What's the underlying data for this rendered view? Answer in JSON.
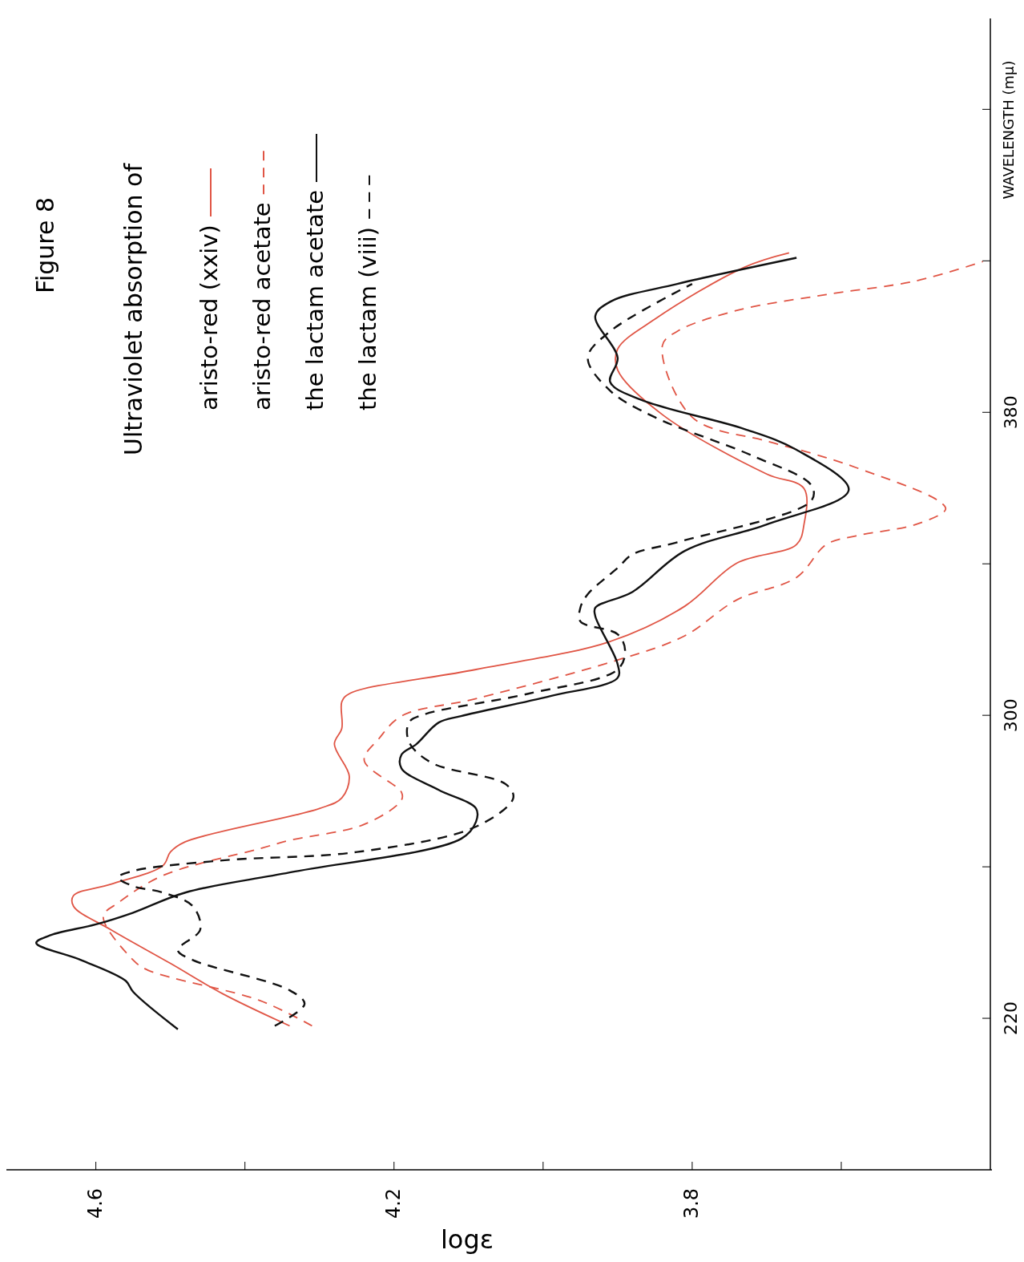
{
  "chart_data": {
    "type": "line",
    "title": "Figure 8",
    "subtitle": "Ultraviolet absorption of",
    "xlabel": "logε",
    "ylabel": "WAVELENGTH (mμ)",
    "xlim": [
      4.72,
      3.4
    ],
    "xticks": [
      4.6,
      {
        "value": 4.4,
        "label": null
      },
      4.2,
      {
        "value": 4.0,
        "label": null
      },
      3.8,
      {
        "value": 3.6,
        "label": null
      }
    ],
    "ylim": [
      180,
      484
    ],
    "yticks": [
      220,
      {
        "value": 260,
        "label": null
      },
      300,
      {
        "value": 340,
        "label": null
      },
      380,
      {
        "value": 420,
        "label": null
      },
      {
        "value": 460,
        "label": null
      }
    ],
    "legend": "top left",
    "marker": "none",
    "series": [
      {
        "name": "aristo-red (xxiv)",
        "color": "#e05545",
        "line_style": "solid",
        "values": [
          218.0,
          226.5,
          234.5,
          243.4,
          249.6,
          252.4,
          255.4,
          260.3,
          263.9,
          266.6,
          275.4,
          278.2,
          283.9,
          292.4,
          296.6,
          303.6,
          305.7,
          312.1,
          319.5,
          328.8,
          340.2,
          345.1,
          350.4,
          359.9,
          363.7,
          379.4,
          391.2,
          396.7,
          404.6,
          418.3,
          422.1
        ],
        "x": [
          4.34,
          4.43,
          4.5,
          4.58,
          4.63,
          4.63,
          4.58,
          4.51,
          4.5,
          4.48,
          4.3,
          4.27,
          4.26,
          4.28,
          4.27,
          4.27,
          4.26,
          4.09,
          3.91,
          3.81,
          3.74,
          3.66,
          3.65,
          3.65,
          3.7,
          3.84,
          3.9,
          3.9,
          3.85,
          3.73,
          3.67
        ]
      },
      {
        "name": "aristo-red acetate",
        "color": "#e05545",
        "line_style": "dashed",
        "values": [
          218.0,
          224.7,
          232.7,
          235.4,
          246.9,
          250.5,
          257.7,
          264.8,
          267.0,
          271.2,
          277.6,
          279.7,
          288.1,
          293.9,
          299.8,
          304.4,
          314.6,
          321.0,
          330.5,
          336.4,
          345.1,
          347.4,
          350.4,
          354.4,
          356.7,
          365.4,
          369.2,
          372.4,
          378.7,
          397.6,
          401.4,
          406.9,
          411.1,
          414.7,
          419.8
        ],
        "x": [
          4.31,
          4.38,
          4.53,
          4.55,
          4.59,
          4.57,
          4.51,
          4.38,
          4.34,
          4.24,
          4.19,
          4.19,
          4.24,
          4.22,
          4.19,
          4.09,
          3.9,
          3.81,
          3.74,
          3.66,
          3.62,
          3.58,
          3.5,
          3.46,
          3.47,
          3.58,
          3.64,
          3.7,
          3.8,
          3.84,
          3.82,
          3.74,
          3.62,
          3.5,
          3.41
        ]
      },
      {
        "name": "the lactam acetate",
        "color": "#111111",
        "line_style": "solid",
        "values": [
          217.1,
          227.0,
          229.9,
          235.4,
          239.9,
          242.0,
          244.8,
          247.9,
          253.2,
          258.5,
          267.4,
          271.9,
          275.4,
          280.3,
          286.0,
          289.6,
          292.4,
          298.1,
          299.8,
          305.1,
          309.9,
          313.5,
          326.2,
          328.4,
          332.6,
          343.4,
          350.4,
          359.5,
          370.1,
          375.6,
          383.4,
          388.0,
          394.4,
          405.4,
          409.2,
          413.9,
          420.8
        ],
        "x": [
          4.49,
          4.55,
          4.56,
          4.62,
          4.68,
          4.66,
          4.6,
          4.55,
          4.48,
          4.34,
          4.11,
          4.09,
          4.09,
          4.14,
          4.19,
          4.19,
          4.17,
          4.14,
          4.11,
          3.99,
          3.9,
          3.9,
          3.93,
          3.93,
          3.88,
          3.81,
          3.7,
          3.59,
          3.66,
          3.73,
          3.87,
          3.91,
          3.9,
          3.93,
          3.91,
          3.82,
          3.66
        ]
      },
      {
        "name": "the lactam (viii)",
        "color": "#111111",
        "line_style": "dashed",
        "values": [
          218.0,
          223.8,
          227.4,
          235.4,
          238.0,
          243.4,
          249.6,
          253.2,
          254.9,
          257.2,
          258.9,
          261.7,
          263.9,
          270.6,
          278.2,
          281.8,
          287.5,
          293.0,
          298.1,
          300.2,
          305.7,
          312.1,
          317.1,
          321.4,
          324.8,
          328.4,
          332.0,
          338.9,
          342.5,
          345.7,
          356.7,
          360.7,
          368.6,
          378.7,
          385.7,
          394.4,
          401.4,
          413.9
        ],
        "x": [
          4.36,
          4.32,
          4.34,
          4.47,
          4.49,
          4.46,
          4.47,
          4.51,
          4.55,
          4.57,
          4.55,
          4.43,
          4.25,
          4.09,
          4.04,
          4.05,
          4.15,
          4.18,
          4.18,
          4.16,
          4.02,
          3.9,
          3.89,
          3.9,
          3.95,
          3.95,
          3.94,
          3.9,
          3.88,
          3.82,
          3.64,
          3.64,
          3.72,
          3.85,
          3.91,
          3.94,
          3.91,
          3.8
        ]
      }
    ]
  }
}
